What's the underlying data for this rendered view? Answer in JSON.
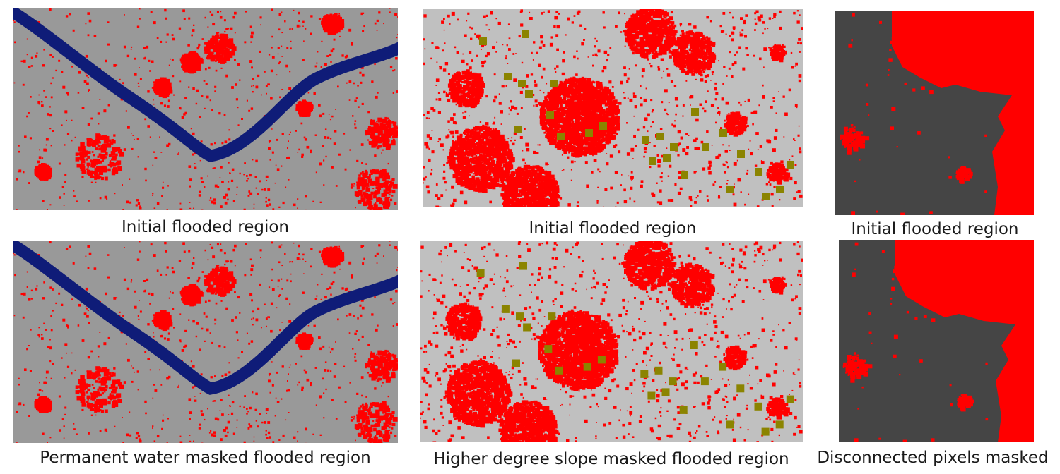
{
  "colors": {
    "flood": "#ff0000",
    "permanent_water": "#0f1c78",
    "slope": "#8b8400",
    "background_gray": "#999999",
    "background_light": "#c0c0c0",
    "background_dark": "#454545"
  },
  "captions": {
    "col1_top": "Initial flooded region",
    "col1_bottom": "Permanent water masked flooded region",
    "col2_top": "Initial flooded region",
    "col2_bottom": "Higher degree slope masked flooded region",
    "col3_top": "Initial flooded region",
    "col3_bottom": "Disconnected pixels masked"
  }
}
